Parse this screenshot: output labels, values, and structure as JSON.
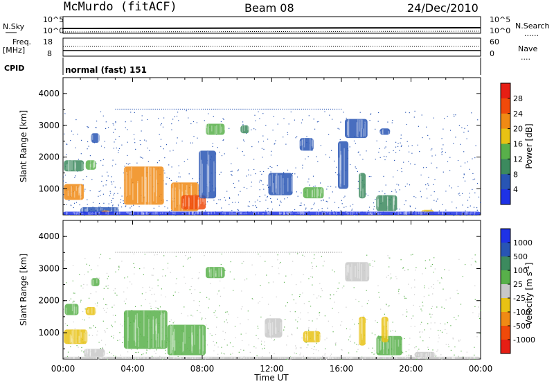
{
  "header": {
    "station": "McMurdo (fitACF)",
    "beam": "Beam 08",
    "date": "24/Dec/2010"
  },
  "top_panels": {
    "nsky_label": "N.Sky",
    "nsearch_label": "N.Search",
    "nsearch_style": "......",
    "noise_ticks": [
      "10^5",
      "10^0"
    ],
    "freq_label": "Freq.",
    "freq_unit": "[MHz]",
    "freq_ticks": [
      "18",
      "8"
    ],
    "nave_label": "Nave",
    "nave_style": "....",
    "nave_ticks": [
      "60",
      "0"
    ],
    "cpid_label": "CPID",
    "cpid_value": "normal (fast) 151"
  },
  "colors": {
    "power": [
      "#1e32e6",
      "#2855b4",
      "#3c8a5e",
      "#58b04a",
      "#e8c214",
      "#f08a14",
      "#f04a0a",
      "#e61e14"
    ],
    "velocity": [
      "#e61e14",
      "#f04a0a",
      "#f08a14",
      "#e8c214",
      "#c8c8c8",
      "#58b04a",
      "#3c8a5e",
      "#2855b4",
      "#1e32e6"
    ]
  },
  "chart_data": [
    {
      "type": "heatmap",
      "panel": "power",
      "ylabel": "Slant Range [km]",
      "yticks": [
        "4000",
        "3000",
        "2000",
        "1000"
      ],
      "ylim": [
        180,
        4500
      ],
      "xlim": [
        "00:00",
        "24:00"
      ],
      "colorbar_label": "Power [dB]",
      "colorbar_ticks": [
        "28",
        "24",
        "20",
        "16",
        "12",
        "8",
        "4"
      ],
      "colorbar_range": [
        0,
        32
      ],
      "patches": [
        {
          "t0": 0.05,
          "t1": 1.2,
          "r0": 650,
          "r1": 1150,
          "v": 22
        },
        {
          "t0": 0.05,
          "t1": 1.2,
          "r0": 1550,
          "r1": 1900,
          "v": 12
        },
        {
          "t0": 1.3,
          "t1": 1.9,
          "r0": 1600,
          "r1": 1900,
          "v": 16
        },
        {
          "t0": 1.6,
          "t1": 2.1,
          "r0": 2450,
          "r1": 2750,
          "v": 6
        },
        {
          "t0": 1.0,
          "t1": 3.2,
          "r0": 220,
          "r1": 420,
          "v": 8
        },
        {
          "t0": 2.2,
          "t1": 2.7,
          "r0": 230,
          "r1": 320,
          "v": 24
        },
        {
          "t0": 3.5,
          "t1": 5.8,
          "r0": 500,
          "r1": 1700,
          "v": 22
        },
        {
          "t0": 6.2,
          "t1": 7.8,
          "r0": 300,
          "r1": 1200,
          "v": 22
        },
        {
          "t0": 6.8,
          "t1": 8.2,
          "r0": 350,
          "r1": 800,
          "v": 28
        },
        {
          "t0": 7.8,
          "t1": 8.8,
          "r0": 700,
          "r1": 2200,
          "v": 8
        },
        {
          "t0": 8.2,
          "t1": 9.3,
          "r0": 2700,
          "r1": 3050,
          "v": 16
        },
        {
          "t0": 10.2,
          "t1": 10.7,
          "r0": 2750,
          "r1": 3000,
          "v": 10
        },
        {
          "t0": 11.8,
          "t1": 13.2,
          "r0": 800,
          "r1": 1500,
          "v": 8
        },
        {
          "t0": 13.6,
          "t1": 14.4,
          "r0": 2200,
          "r1": 2600,
          "v": 6
        },
        {
          "t0": 13.8,
          "t1": 15.0,
          "r0": 700,
          "r1": 1050,
          "v": 16
        },
        {
          "t0": 15.8,
          "t1": 16.4,
          "r0": 1000,
          "r1": 2500,
          "v": 8
        },
        {
          "t0": 16.2,
          "t1": 17.5,
          "r0": 2600,
          "r1": 3200,
          "v": 5
        },
        {
          "t0": 17.0,
          "t1": 17.4,
          "r0": 700,
          "r1": 1500,
          "v": 10
        },
        {
          "t0": 18.0,
          "t1": 19.2,
          "r0": 300,
          "r1": 800,
          "v": 12
        },
        {
          "t0": 18.2,
          "t1": 18.8,
          "r0": 2700,
          "r1": 2900,
          "v": 6
        },
        {
          "t0": 20.6,
          "t1": 21.3,
          "r0": 220,
          "r1": 340,
          "v": 18
        },
        {
          "t0": 0.0,
          "t1": 24.0,
          "r0": 180,
          "r1": 280,
          "v": 4
        }
      ]
    },
    {
      "type": "heatmap",
      "panel": "velocity",
      "ylabel": "Slant Range [km]",
      "yticks": [
        "4000",
        "3000",
        "2000",
        "1000"
      ],
      "ylim": [
        180,
        4500
      ],
      "xlim": [
        "00:00",
        "24:00"
      ],
      "xlabel": "Time UT",
      "xticks": [
        "00:00",
        "04:00",
        "08:00",
        "12:00",
        "16:00",
        "20:00",
        "00:00"
      ],
      "colorbar_label": "Velocity [m s^-1]",
      "colorbar_ticks": [
        "1000",
        "500",
        "100",
        "25",
        "-25",
        "-100",
        "-500",
        "-1000"
      ],
      "colorbar_range": [
        -1500,
        1500
      ],
      "patches": [
        {
          "t0": 0.05,
          "t1": 1.4,
          "r0": 650,
          "r1": 1100,
          "v": -400
        },
        {
          "t0": 0.1,
          "t1": 0.9,
          "r0": 1550,
          "r1": 1900,
          "v": 200
        },
        {
          "t0": 1.3,
          "t1": 1.9,
          "r0": 1550,
          "r1": 1800,
          "v": -300
        },
        {
          "t0": 1.6,
          "t1": 2.1,
          "r0": 2450,
          "r1": 2700,
          "v": 200
        },
        {
          "t0": 1.2,
          "t1": 2.4,
          "r0": 250,
          "r1": 500,
          "v": 0
        },
        {
          "t0": 3.5,
          "t1": 6.0,
          "r0": 500,
          "r1": 1700,
          "v": 400
        },
        {
          "t0": 6.0,
          "t1": 8.2,
          "r0": 300,
          "r1": 1250,
          "v": 400
        },
        {
          "t0": 8.2,
          "t1": 9.3,
          "r0": 2700,
          "r1": 3050,
          "v": 300
        },
        {
          "t0": 11.6,
          "t1": 12.6,
          "r0": 850,
          "r1": 1450,
          "v": -120
        },
        {
          "t0": 13.8,
          "t1": 14.8,
          "r0": 700,
          "r1": 1050,
          "v": -300
        },
        {
          "t0": 16.2,
          "t1": 17.6,
          "r0": 2600,
          "r1": 3200,
          "v": 0
        },
        {
          "t0": 17.0,
          "t1": 17.4,
          "r0": 600,
          "r1": 1500,
          "v": -300
        },
        {
          "t0": 18.0,
          "t1": 19.5,
          "r0": 300,
          "r1": 900,
          "v": 300
        },
        {
          "t0": 18.3,
          "t1": 18.7,
          "r0": 700,
          "r1": 1500,
          "v": -300
        },
        {
          "t0": 20.2,
          "t1": 21.4,
          "r0": 230,
          "r1": 400,
          "v": 0
        },
        {
          "t0": 0.0,
          "t1": 24.0,
          "r0": 180,
          "r1": 250,
          "v": 0
        }
      ]
    }
  ]
}
